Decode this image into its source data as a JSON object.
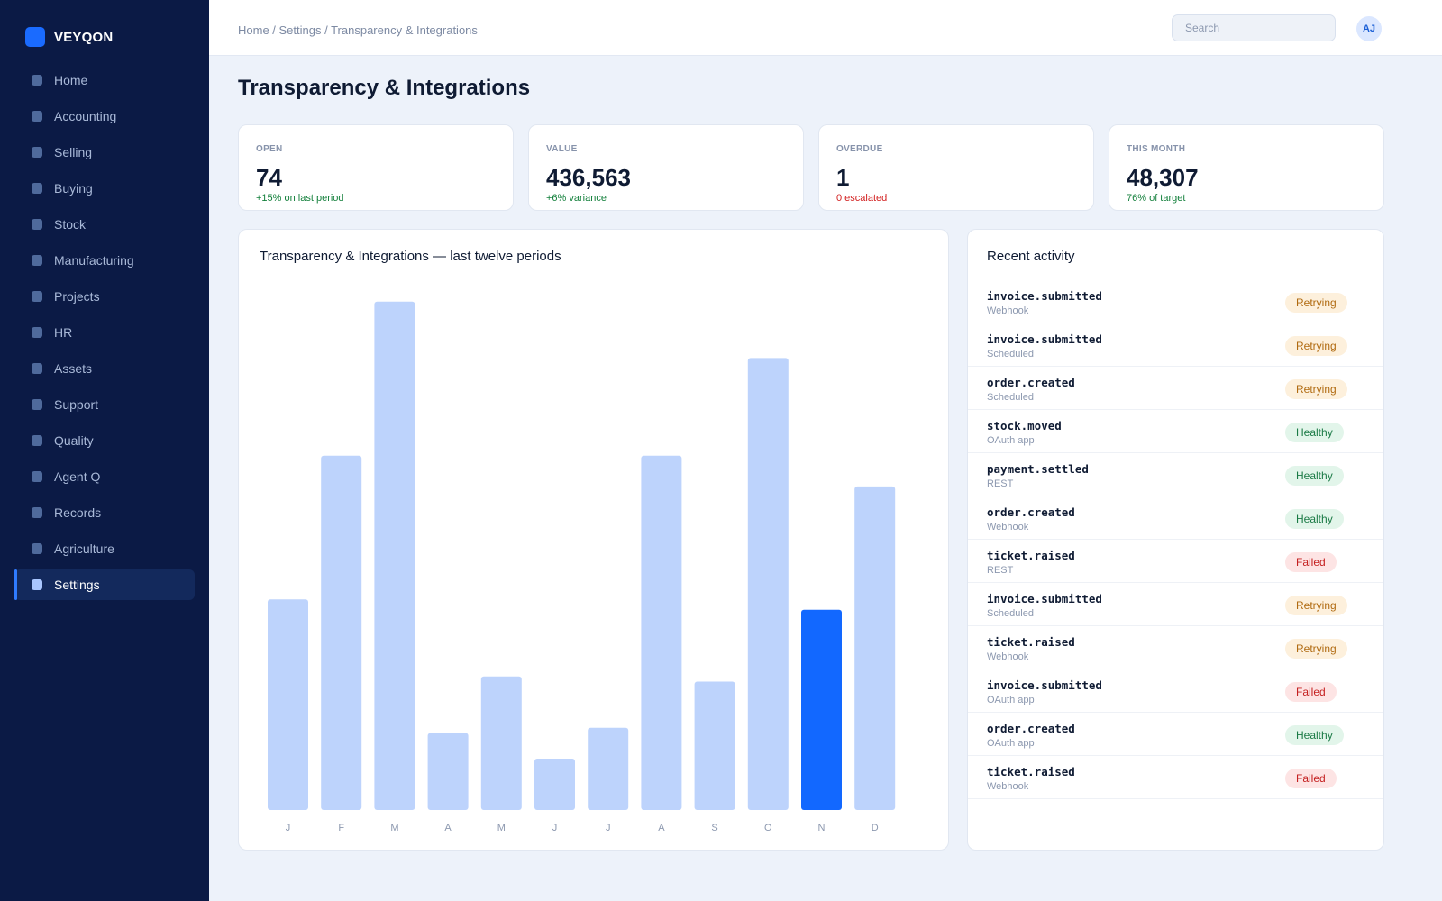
{
  "brand": {
    "name": "VEYQON"
  },
  "sidebar": {
    "items": [
      {
        "label": "Home",
        "active": false
      },
      {
        "label": "Accounting",
        "active": false
      },
      {
        "label": "Selling",
        "active": false
      },
      {
        "label": "Buying",
        "active": false
      },
      {
        "label": "Stock",
        "active": false
      },
      {
        "label": "Manufacturing",
        "active": false
      },
      {
        "label": "Projects",
        "active": false
      },
      {
        "label": "HR",
        "active": false
      },
      {
        "label": "Assets",
        "active": false
      },
      {
        "label": "Support",
        "active": false
      },
      {
        "label": "Quality",
        "active": false
      },
      {
        "label": "Agent Q",
        "active": false
      },
      {
        "label": "Records",
        "active": false
      },
      {
        "label": "Agriculture",
        "active": false
      },
      {
        "label": "Settings",
        "active": true
      }
    ]
  },
  "header": {
    "breadcrumb": "Home / Settings / Transparency & Integrations",
    "search_placeholder": "Search",
    "avatar_initials": "AJ"
  },
  "page": {
    "title": "Transparency & Integrations"
  },
  "kpis": [
    {
      "label": "OPEN",
      "value": "74",
      "delta": "+15% on last period",
      "tone": "good"
    },
    {
      "label": "VALUE",
      "value": "436,563",
      "delta": "+6% variance",
      "tone": "good"
    },
    {
      "label": "OVERDUE",
      "value": "1",
      "delta": "0 escalated",
      "tone": "bad"
    },
    {
      "label": "THIS MONTH",
      "value": "48,307",
      "delta": "76% of target",
      "tone": "good"
    }
  ],
  "chart_data": {
    "type": "bar",
    "title": "Transparency & Integrations — last twelve periods",
    "categories": [
      "J",
      "F",
      "M",
      "A",
      "M",
      "J",
      "J",
      "A",
      "S",
      "O",
      "N",
      "D"
    ],
    "values": [
      41,
      69,
      99,
      15,
      26,
      10,
      16,
      69,
      25,
      88,
      39,
      63
    ],
    "highlight_index": 10,
    "colors": {
      "bar": "#bdd3fc",
      "highlight": "#1268ff",
      "tick": "#8c98af"
    },
    "grid": false,
    "ylim": [
      0,
      100
    ]
  },
  "activity": {
    "title": "Recent activity",
    "items": [
      {
        "event": "invoice.submitted",
        "source": "Webhook",
        "status": "Retrying"
      },
      {
        "event": "invoice.submitted",
        "source": "Scheduled",
        "status": "Retrying"
      },
      {
        "event": "order.created",
        "source": "Scheduled",
        "status": "Retrying"
      },
      {
        "event": "stock.moved",
        "source": "OAuth app",
        "status": "Healthy"
      },
      {
        "event": "payment.settled",
        "source": "REST",
        "status": "Healthy"
      },
      {
        "event": "order.created",
        "source": "Webhook",
        "status": "Healthy"
      },
      {
        "event": "ticket.raised",
        "source": "REST",
        "status": "Failed"
      },
      {
        "event": "invoice.submitted",
        "source": "Scheduled",
        "status": "Retrying"
      },
      {
        "event": "ticket.raised",
        "source": "Webhook",
        "status": "Retrying"
      },
      {
        "event": "invoice.submitted",
        "source": "OAuth app",
        "status": "Failed"
      },
      {
        "event": "order.created",
        "source": "OAuth app",
        "status": "Healthy"
      },
      {
        "event": "ticket.raised",
        "source": "Webhook",
        "status": "Failed"
      }
    ]
  }
}
